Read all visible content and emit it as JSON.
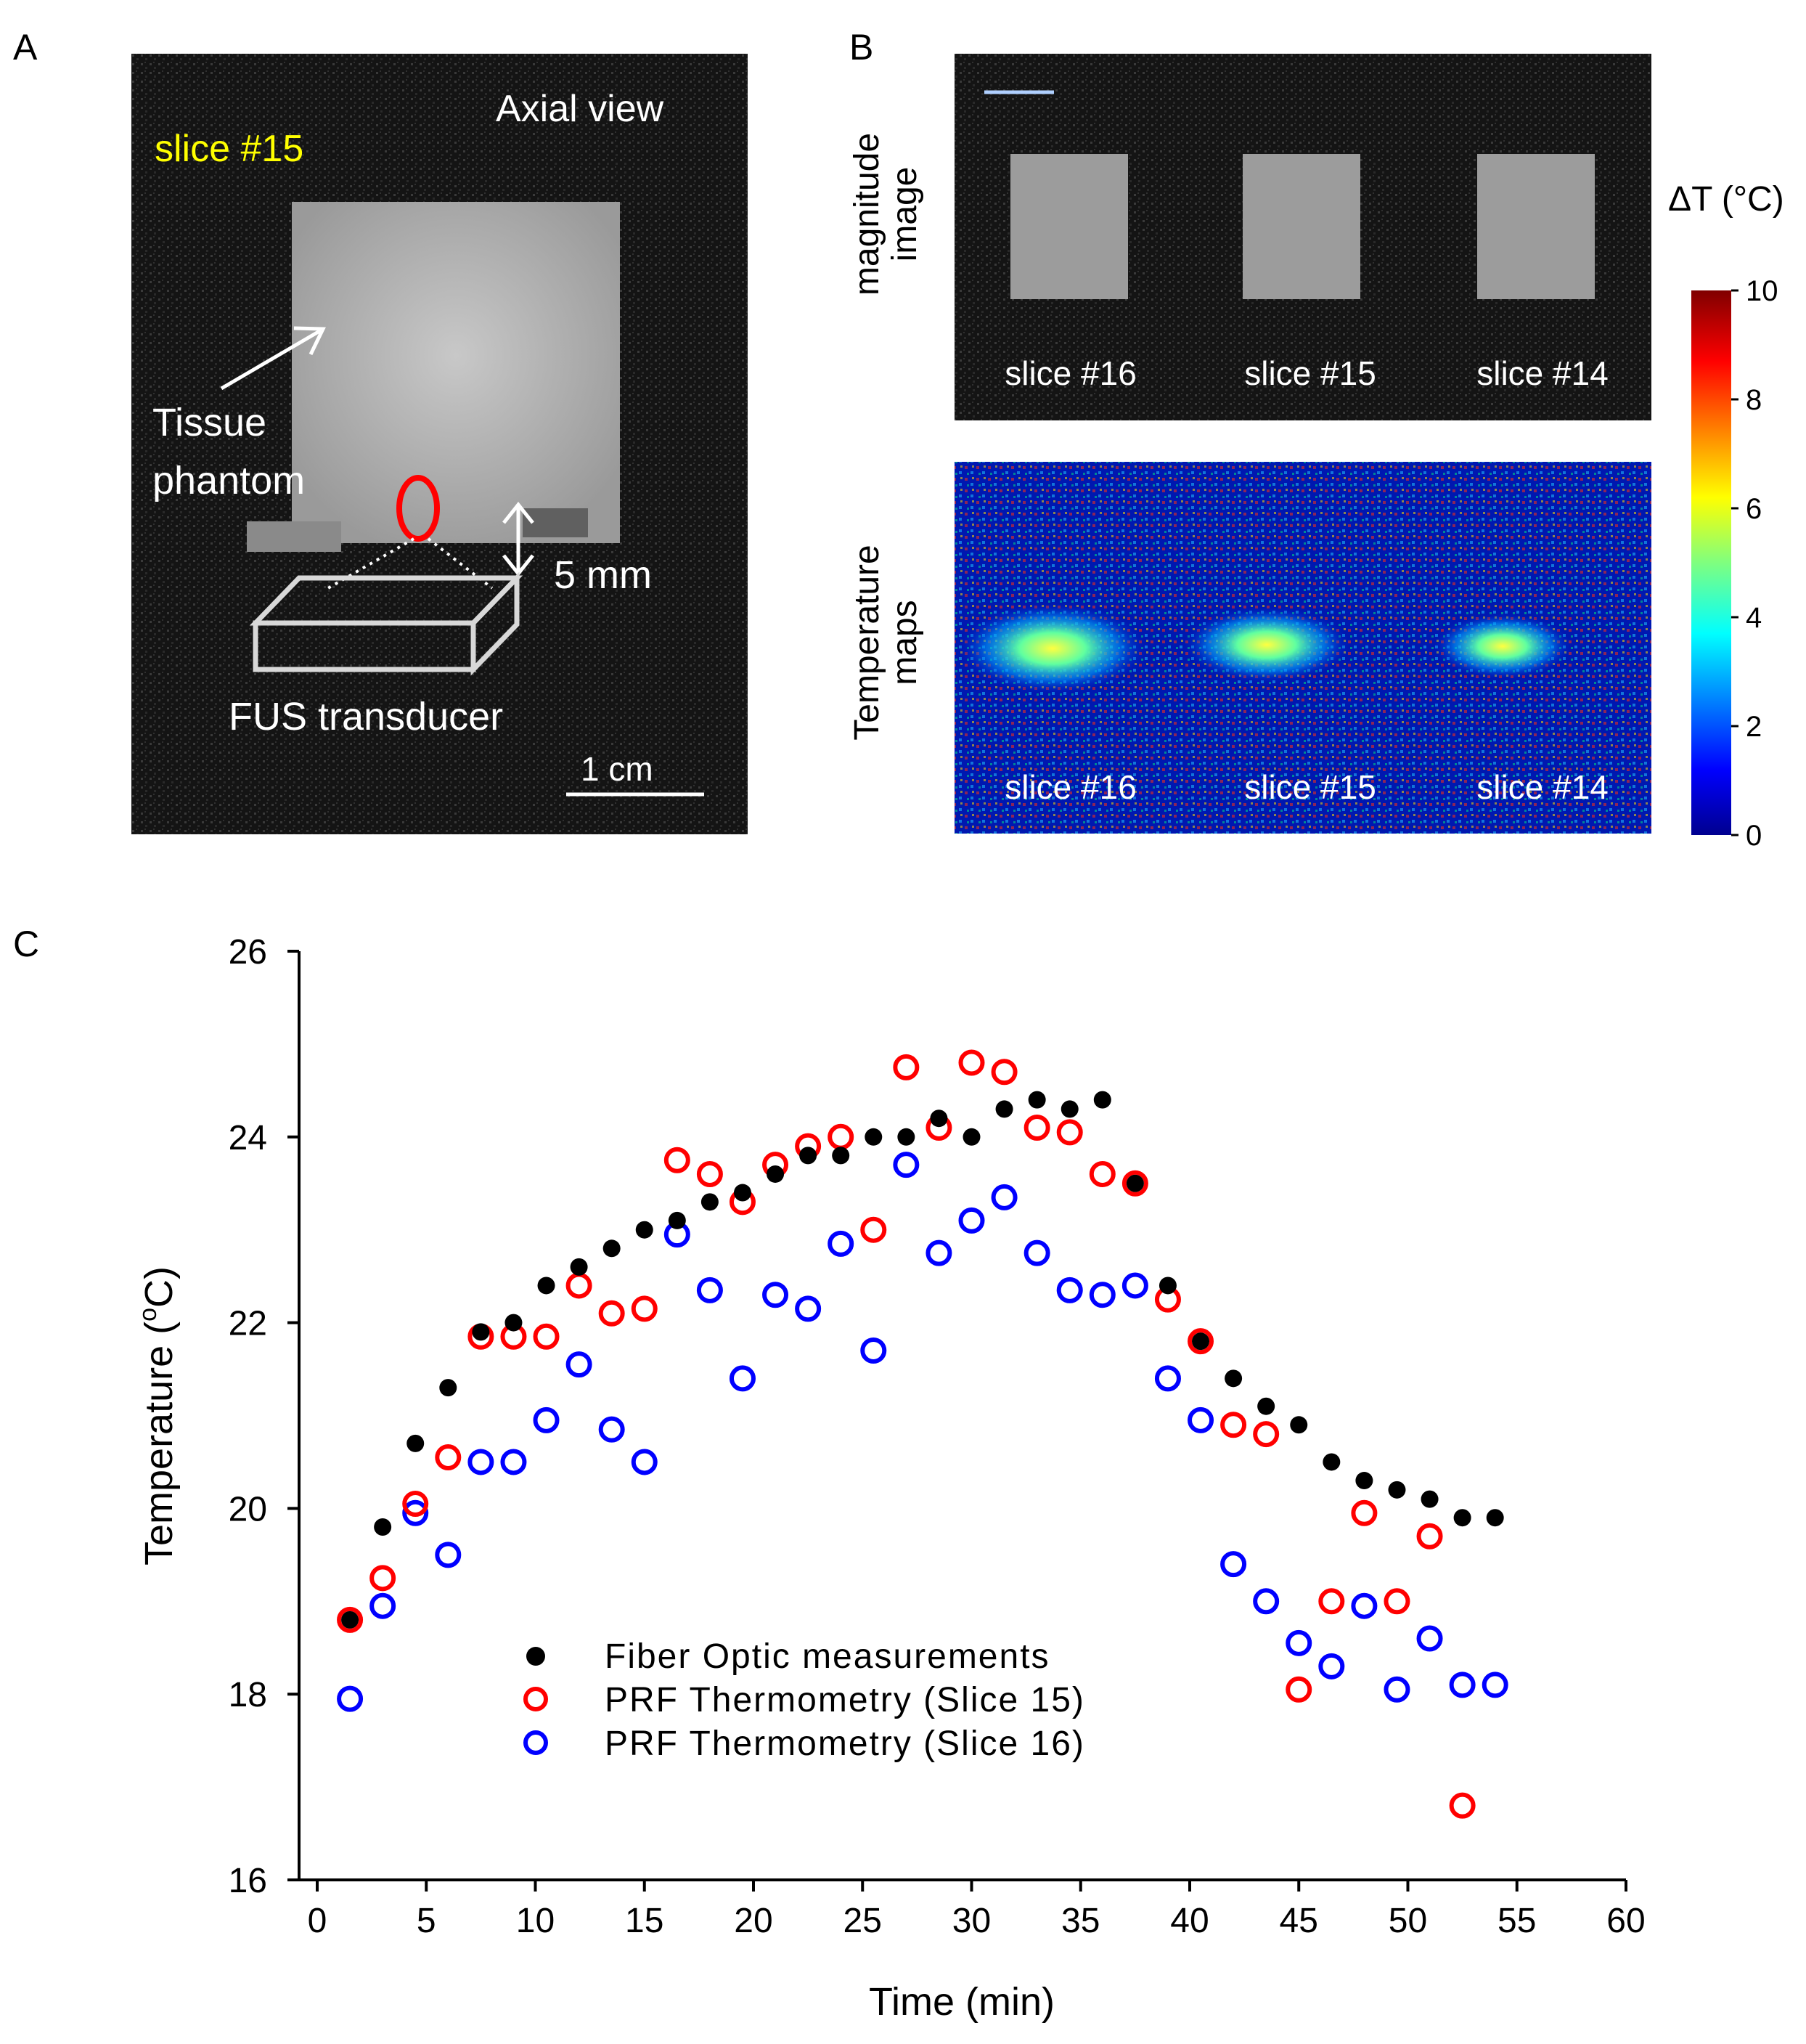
{
  "panel_a": {
    "letter": "A",
    "slice_label": "slice #15",
    "view_label": "Axial view",
    "phantom_label_1": "Tissue",
    "phantom_label_2": "phantom",
    "distance_label": "5 mm",
    "transducer_label": "FUS transducer",
    "scalebar_label": "1 cm",
    "colors": {
      "slice_label": "#ffff00",
      "focus_ring": "#ff0000"
    }
  },
  "panel_b": {
    "letter": "B",
    "row1_label_1": "magnitude",
    "row1_label_2": "image",
    "row2_label_1": "Temperature",
    "row2_label_2": "maps",
    "slice_labels": [
      "slice #16",
      "slice #15",
      "slice #14"
    ],
    "colorbar": {
      "title": "ΔT (°C)",
      "ticks": [
        "10",
        "8",
        "6",
        "4",
        "2",
        "0"
      ],
      "range": [
        0,
        10
      ]
    }
  },
  "panel_c": {
    "letter": "C"
  },
  "chart_data": {
    "type": "scatter",
    "title": "",
    "xlabel": "Time (min)",
    "ylabel": "Temperature (°C)",
    "ylabel_main": "Temperature (",
    "ylabel_sup": "o",
    "ylabel_end": "C)",
    "xlim": [
      0,
      60
    ],
    "ylim": [
      16,
      26
    ],
    "xticks": [
      "0",
      "5",
      "10",
      "15",
      "20",
      "25",
      "30",
      "35",
      "40",
      "45",
      "50",
      "55",
      "60"
    ],
    "yticks": [
      "16",
      "18",
      "20",
      "22",
      "24",
      "26"
    ],
    "grid": false,
    "legend_position": "bottom-left",
    "series": [
      {
        "name": "Fiber Optic measurements",
        "marker": "filled-circle",
        "color": "#000000",
        "points": [
          [
            1.5,
            18.8
          ],
          [
            3,
            19.8
          ],
          [
            4.5,
            20.7
          ],
          [
            6,
            21.3
          ],
          [
            7.5,
            21.9
          ],
          [
            9,
            22.0
          ],
          [
            10.5,
            22.4
          ],
          [
            12,
            22.6
          ],
          [
            13.5,
            22.8
          ],
          [
            15,
            23.0
          ],
          [
            16.5,
            23.1
          ],
          [
            18,
            23.3
          ],
          [
            19.5,
            23.4
          ],
          [
            21,
            23.6
          ],
          [
            22.5,
            23.8
          ],
          [
            24,
            23.8
          ],
          [
            25.5,
            24.0
          ],
          [
            27,
            24.0
          ],
          [
            28.5,
            24.2
          ],
          [
            30,
            24.0
          ],
          [
            31.5,
            24.3
          ],
          [
            33,
            24.4
          ],
          [
            34.5,
            24.3
          ],
          [
            36,
            24.4
          ],
          [
            37.5,
            23.5
          ],
          [
            39,
            22.4
          ],
          [
            40.5,
            21.8
          ],
          [
            42,
            21.4
          ],
          [
            43.5,
            21.1
          ],
          [
            45,
            20.9
          ],
          [
            46.5,
            20.5
          ],
          [
            48,
            20.3
          ],
          [
            49.5,
            20.2
          ],
          [
            51,
            20.1
          ],
          [
            52.5,
            19.9
          ],
          [
            54,
            19.9
          ]
        ]
      },
      {
        "name": "PRF Thermometry (Slice 15)",
        "marker": "open-circle",
        "color": "#ff0000",
        "points": [
          [
            1.5,
            18.8
          ],
          [
            3,
            19.25
          ],
          [
            4.5,
            20.05
          ],
          [
            6,
            20.55
          ],
          [
            7.5,
            21.85
          ],
          [
            9,
            21.85
          ],
          [
            10.5,
            21.85
          ],
          [
            12,
            22.4
          ],
          [
            13.5,
            22.1
          ],
          [
            15,
            22.15
          ],
          [
            16.5,
            23.75
          ],
          [
            18,
            23.6
          ],
          [
            19.5,
            23.3
          ],
          [
            21,
            23.7
          ],
          [
            22.5,
            23.9
          ],
          [
            24,
            24.0
          ],
          [
            25.5,
            23.0
          ],
          [
            27,
            24.75
          ],
          [
            28.5,
            24.1
          ],
          [
            30,
            24.8
          ],
          [
            31.5,
            24.7
          ],
          [
            33,
            24.1
          ],
          [
            34.5,
            24.05
          ],
          [
            36,
            23.6
          ],
          [
            37.5,
            23.5
          ],
          [
            39,
            22.25
          ],
          [
            40.5,
            21.8
          ],
          [
            42,
            20.9
          ],
          [
            43.5,
            20.8
          ],
          [
            45,
            18.05
          ],
          [
            46.5,
            19.0
          ],
          [
            48,
            19.95
          ],
          [
            49.5,
            19.0
          ],
          [
            51,
            19.7
          ],
          [
            52.5,
            16.8
          ]
        ]
      },
      {
        "name": "PRF Thermometry (Slice 16)",
        "marker": "open-circle",
        "color": "#0000ff",
        "points": [
          [
            1.5,
            17.95
          ],
          [
            3,
            18.95
          ],
          [
            4.5,
            19.95
          ],
          [
            6,
            19.5
          ],
          [
            7.5,
            20.5
          ],
          [
            9,
            20.5
          ],
          [
            10.5,
            20.95
          ],
          [
            12,
            21.55
          ],
          [
            13.5,
            20.85
          ],
          [
            15,
            20.5
          ],
          [
            16.5,
            22.95
          ],
          [
            18,
            22.35
          ],
          [
            19.5,
            21.4
          ],
          [
            21,
            22.3
          ],
          [
            22.5,
            22.15
          ],
          [
            24,
            22.85
          ],
          [
            25.5,
            21.7
          ],
          [
            27,
            23.7
          ],
          [
            28.5,
            22.75
          ],
          [
            30,
            23.1
          ],
          [
            31.5,
            23.35
          ],
          [
            33,
            22.75
          ],
          [
            34.5,
            22.35
          ],
          [
            36,
            22.3
          ],
          [
            37.5,
            22.4
          ],
          [
            39,
            21.4
          ],
          [
            40.5,
            20.95
          ],
          [
            42,
            19.4
          ],
          [
            43.5,
            19.0
          ],
          [
            45,
            18.55
          ],
          [
            46.5,
            18.3
          ],
          [
            48,
            18.95
          ],
          [
            49.5,
            18.05
          ],
          [
            51,
            18.6
          ],
          [
            52.5,
            18.1
          ],
          [
            54,
            18.1
          ]
        ]
      }
    ]
  }
}
